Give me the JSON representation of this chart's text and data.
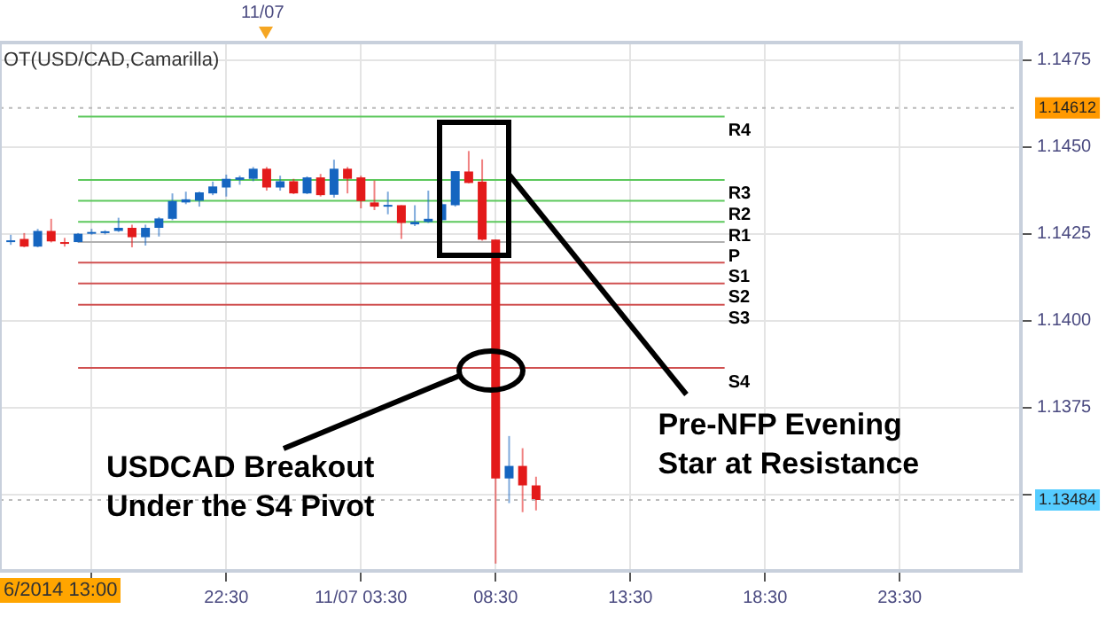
{
  "chart_data": {
    "type": "candlestick",
    "x": [
      "2014-11-06T14:30",
      "2014-11-06T15:00",
      "2014-11-06T15:30",
      "2014-11-06T16:00",
      "2014-11-06T16:30",
      "2014-11-06T17:00",
      "2014-11-06T17:30",
      "2014-11-06T18:00",
      "2014-11-06T18:30",
      "2014-11-06T19:00",
      "2014-11-06T19:30",
      "2014-11-06T20:00",
      "2014-11-06T20:30",
      "2014-11-06T21:00",
      "2014-11-06T21:30",
      "2014-11-06T22:00",
      "2014-11-06T22:30",
      "2014-11-06T23:00",
      "2014-11-06T23:30",
      "2014-11-07T00:00",
      "2014-11-07T00:30",
      "2014-11-07T01:00",
      "2014-11-07T01:30",
      "2014-11-07T02:00",
      "2014-11-07T02:30",
      "2014-11-07T03:00",
      "2014-11-07T03:30",
      "2014-11-07T04:00",
      "2014-11-07T04:30",
      "2014-11-07T05:00",
      "2014-11-07T05:30",
      "2014-11-07T06:00",
      "2014-11-07T06:30",
      "2014-11-07T07:00",
      "2014-11-07T07:30",
      "2014-11-07T08:00",
      "2014-11-07T08:30",
      "2014-11-07T09:00",
      "2014-11-07T09:30",
      "2014-11-07T10:00"
    ],
    "ohlc": [
      [
        1.14228,
        1.14247,
        1.14218,
        1.14231
      ],
      [
        1.14235,
        1.14252,
        1.14211,
        1.14213
      ],
      [
        1.14213,
        1.14264,
        1.14211,
        1.14258
      ],
      [
        1.14258,
        1.14293,
        1.14225,
        1.14228
      ],
      [
        1.14226,
        1.14238,
        1.14213,
        1.14223
      ],
      [
        1.14226,
        1.14252,
        1.14225,
        1.1425
      ],
      [
        1.1425,
        1.14264,
        1.14247,
        1.14255
      ],
      [
        1.14252,
        1.1426,
        1.14248,
        1.14257
      ],
      [
        1.14258,
        1.14296,
        1.14255,
        1.14267
      ],
      [
        1.14267,
        1.14276,
        1.14211,
        1.1424
      ],
      [
        1.1424,
        1.14276,
        1.14216,
        1.14267
      ],
      [
        1.14267,
        1.14298,
        1.14242,
        1.14294
      ],
      [
        1.14293,
        1.14366,
        1.14289,
        1.14344
      ],
      [
        1.1434,
        1.14371,
        1.14335,
        1.14349
      ],
      [
        1.14345,
        1.14371,
        1.14328,
        1.14369
      ],
      [
        1.14366,
        1.144,
        1.14361,
        1.14386
      ],
      [
        1.14383,
        1.1442,
        1.14357,
        1.14408
      ],
      [
        1.14405,
        1.14417,
        1.14391,
        1.14412
      ],
      [
        1.14408,
        1.14442,
        1.14401,
        1.14437
      ],
      [
        1.14437,
        1.14442,
        1.14374,
        1.14383
      ],
      [
        1.14383,
        1.14417,
        1.14374,
        1.14401
      ],
      [
        1.14401,
        1.14408,
        1.14364,
        1.14366
      ],
      [
        1.14366,
        1.14415,
        1.14364,
        1.14412
      ],
      [
        1.14412,
        1.14422,
        1.14357,
        1.14361
      ],
      [
        1.14362,
        1.14463,
        1.14354,
        1.14437
      ],
      [
        1.14437,
        1.14442,
        1.14366,
        1.14408
      ],
      [
        1.14412,
        1.14417,
        1.14323,
        1.14344
      ],
      [
        1.1434,
        1.14403,
        1.14318,
        1.14328
      ],
      [
        1.14328,
        1.14371,
        1.14306,
        1.14333
      ],
      [
        1.14332,
        1.14332,
        1.14235,
        1.14281
      ],
      [
        1.14277,
        1.14332,
        1.14272,
        1.14284
      ],
      [
        1.14284,
        1.14374,
        1.14281,
        1.14293
      ],
      [
        1.14289,
        1.1434,
        1.14286,
        1.14335
      ],
      [
        1.14332,
        1.1443,
        1.14328,
        1.1443
      ],
      [
        1.14429,
        1.14488,
        1.14395,
        1.14396
      ],
      [
        1.144,
        1.14464,
        1.1423,
        1.14233
      ],
      [
        1.14233,
        1.14233,
        1.13301,
        1.13546
      ],
      [
        1.13546,
        1.13668,
        1.13475,
        1.13582
      ],
      [
        1.13582,
        1.13633,
        1.13449,
        1.13526
      ],
      [
        1.13526,
        1.13551,
        1.13454,
        1.13484
      ]
    ],
    "colors": [
      "#1565c0",
      "#e31a1a",
      "#1565c0",
      "#e31a1a",
      "#e31a1a",
      "#1565c0",
      "#1565c0",
      "#1565c0",
      "#1565c0",
      "#e31a1a",
      "#1565c0",
      "#1565c0",
      "#1565c0",
      "#1565c0",
      "#1565c0",
      "#1565c0",
      "#1565c0",
      "#1565c0",
      "#1565c0",
      "#e31a1a",
      "#1565c0",
      "#e31a1a",
      "#1565c0",
      "#e31a1a",
      "#1565c0",
      "#e31a1a",
      "#e31a1a",
      "#e31a1a",
      "#1565c0",
      "#e31a1a",
      "#1565c0",
      "#1565c0",
      "#1565c0",
      "#1565c0",
      "#e31a1a",
      "#e31a1a",
      "#e31a1a",
      "#1565c0",
      "#e31a1a",
      "#e31a1a"
    ],
    "series": [
      {
        "type": "line",
        "name": "R4",
        "color": "#5cc85c",
        "x": [
          "2014-11-06T17:00",
          "2014-11-07T17:00"
        ],
        "values": [
          1.14587,
          1.14587
        ]
      },
      {
        "type": "line",
        "name": "R3",
        "color": "#5cc85c",
        "x": [
          "2014-11-06T17:00",
          "2014-11-07T17:00"
        ],
        "values": [
          1.14405,
          1.14405
        ]
      },
      {
        "type": "line",
        "name": "R2",
        "color": "#5cc85c",
        "x": [
          "2014-11-06T17:00",
          "2014-11-07T17:00"
        ],
        "values": [
          1.14345,
          1.14345
        ]
      },
      {
        "type": "line",
        "name": "R1",
        "color": "#5cc85c",
        "x": [
          "2014-11-06T17:00",
          "2014-11-07T17:00"
        ],
        "values": [
          1.14284,
          1.14284
        ]
      },
      {
        "type": "line",
        "name": "P",
        "color": "#b0b0b0",
        "x": [
          "2014-11-06T17:00",
          "2014-11-07T17:00"
        ],
        "values": [
          1.14226,
          1.14226
        ]
      },
      {
        "type": "line",
        "name": "S1",
        "color": "#d05050",
        "x": [
          "2014-11-06T17:00",
          "2014-11-07T17:00"
        ],
        "values": [
          1.14167,
          1.14167
        ]
      },
      {
        "type": "line",
        "name": "S2",
        "color": "#d05050",
        "x": [
          "2014-11-06T17:00",
          "2014-11-07T17:00"
        ],
        "values": [
          1.14107,
          1.14107
        ]
      },
      {
        "type": "line",
        "name": "S3",
        "color": "#d05050",
        "x": [
          "2014-11-06T17:00",
          "2014-11-07T17:00"
        ],
        "values": [
          1.14046,
          1.14046
        ]
      },
      {
        "type": "line",
        "name": "S4",
        "color": "#d05050",
        "x": [
          "2014-11-06T17:00",
          "2014-11-07T17:00"
        ],
        "values": [
          1.13864,
          1.13864
        ]
      }
    ],
    "xlim": [
      "2014-11-06T14:06",
      "2014-11-08T04:00"
    ],
    "xticks": [
      {
        "value": "2014-11-06T17:30",
        "label": null
      },
      {
        "value": "2014-11-06T22:30",
        "label": "22:30"
      },
      {
        "value": "2014-11-07T03:30",
        "label": "11/07 03:30"
      },
      {
        "value": "2014-11-07T08:30",
        "label": "08:30"
      },
      {
        "value": "2014-11-07T13:30",
        "label": "13:30"
      },
      {
        "value": "2014-11-07T18:30",
        "label": "18:30"
      },
      {
        "value": "2014-11-07T23:30",
        "label": "23:30"
      }
    ],
    "ylim": [
      1.1328,
      1.148
    ],
    "yticks": [
      {
        "value": 1.135,
        "label": null
      },
      1.1375,
      {
        "value": 1.14,
        "label": "1.1400"
      },
      1.1425,
      {
        "value": 1.145,
        "label": "1.1450"
      },
      1.1475
    ],
    "ref_lines": [
      {
        "axis": "y",
        "value": 1.14612,
        "label": "1.14612",
        "line_style": "dotted"
      },
      {
        "axis": "y",
        "value": 1.13484,
        "label": "1.13484",
        "line_style": "dotted"
      }
    ],
    "annotations": [
      "OT(USD/CAD,Camarilla)",
      "6/2014 13:00",
      "11/07",
      "USDCAD Breakout Under the S4 Pivot",
      {
        "text": "Pre-NFP Evening Star at Resistance",
        "x": "2014-11-07T09:00",
        "y": 1.1442
      }
    ],
    "grid": true,
    "legend": false,
    "marker": "none",
    "line_style": "solid"
  }
}
